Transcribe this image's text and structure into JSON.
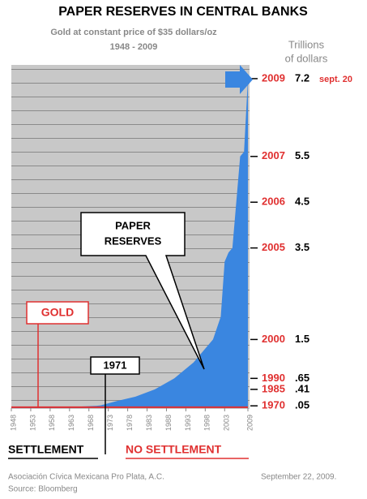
{
  "chart_data": {
    "type": "area",
    "title": "PAPER RESERVES IN CENTRAL BANKS",
    "subtitle": "Gold at constant price of $35 dollars/oz",
    "period": "1948 - 2009",
    "unit_label": [
      "Trillions",
      "of dollars"
    ],
    "x": [
      1948,
      1950,
      1955,
      1960,
      1965,
      1970,
      1971,
      1975,
      1980,
      1985,
      1990,
      1995,
      1998,
      2000,
      2002,
      2003,
      2004,
      2005,
      2006,
      2007,
      2008,
      2009
    ],
    "series": [
      {
        "name": "PAPER RESERVES",
        "color": "#3a86e0",
        "values": [
          0.01,
          0.01,
          0.015,
          0.02,
          0.03,
          0.05,
          0.06,
          0.15,
          0.25,
          0.41,
          0.65,
          1.0,
          1.3,
          1.5,
          2.0,
          3.2,
          3.4,
          3.5,
          4.5,
          5.5,
          5.6,
          7.2
        ]
      },
      {
        "name": "GOLD",
        "color": "#e03030",
        "values": [
          0.02,
          0.02,
          0.02,
          0.02,
          0.02,
          0.02,
          0.02,
          0.02,
          0.02,
          0.02,
          0.02,
          0.02,
          0.02,
          0.02,
          0.02,
          0.02,
          0.02,
          0.02,
          0.02,
          0.02,
          0.02,
          0.02
        ]
      }
    ],
    "xlim": [
      1948,
      2009
    ],
    "xticks": [
      1948,
      1953,
      1958,
      1963,
      1968,
      1973,
      1978,
      1983,
      1988,
      1993,
      1998,
      2003,
      2009
    ],
    "ylim": [
      0,
      7.5
    ],
    "yticks": [
      7.2,
      5.5,
      4.5,
      3.5,
      1.5,
      {
        "value": 0.65,
        "label": ".65"
      },
      {
        "value": 0.41,
        "label": ".41"
      },
      {
        "value": 0.05,
        "label": ".05"
      }
    ],
    "ytick_years": [
      "2009",
      "2007",
      "2006",
      "2005",
      "2000",
      "1990",
      "1985",
      "1970"
    ],
    "ytick_notes": [
      "sept. 20",
      null,
      null,
      null,
      null,
      null,
      null,
      null
    ],
    "callouts": {
      "gold": "GOLD",
      "paper": [
        "PAPER",
        "RESERVES"
      ],
      "year": "1971"
    },
    "settlement": "SETTLEMENT",
    "no_settlement": "NO SETTLEMENT",
    "footer": {
      "org": "Asociación Cívica Mexicana Pro Plata, A.C.",
      "source": "Source: Bloomberg",
      "date": "September 22, 2009."
    }
  }
}
